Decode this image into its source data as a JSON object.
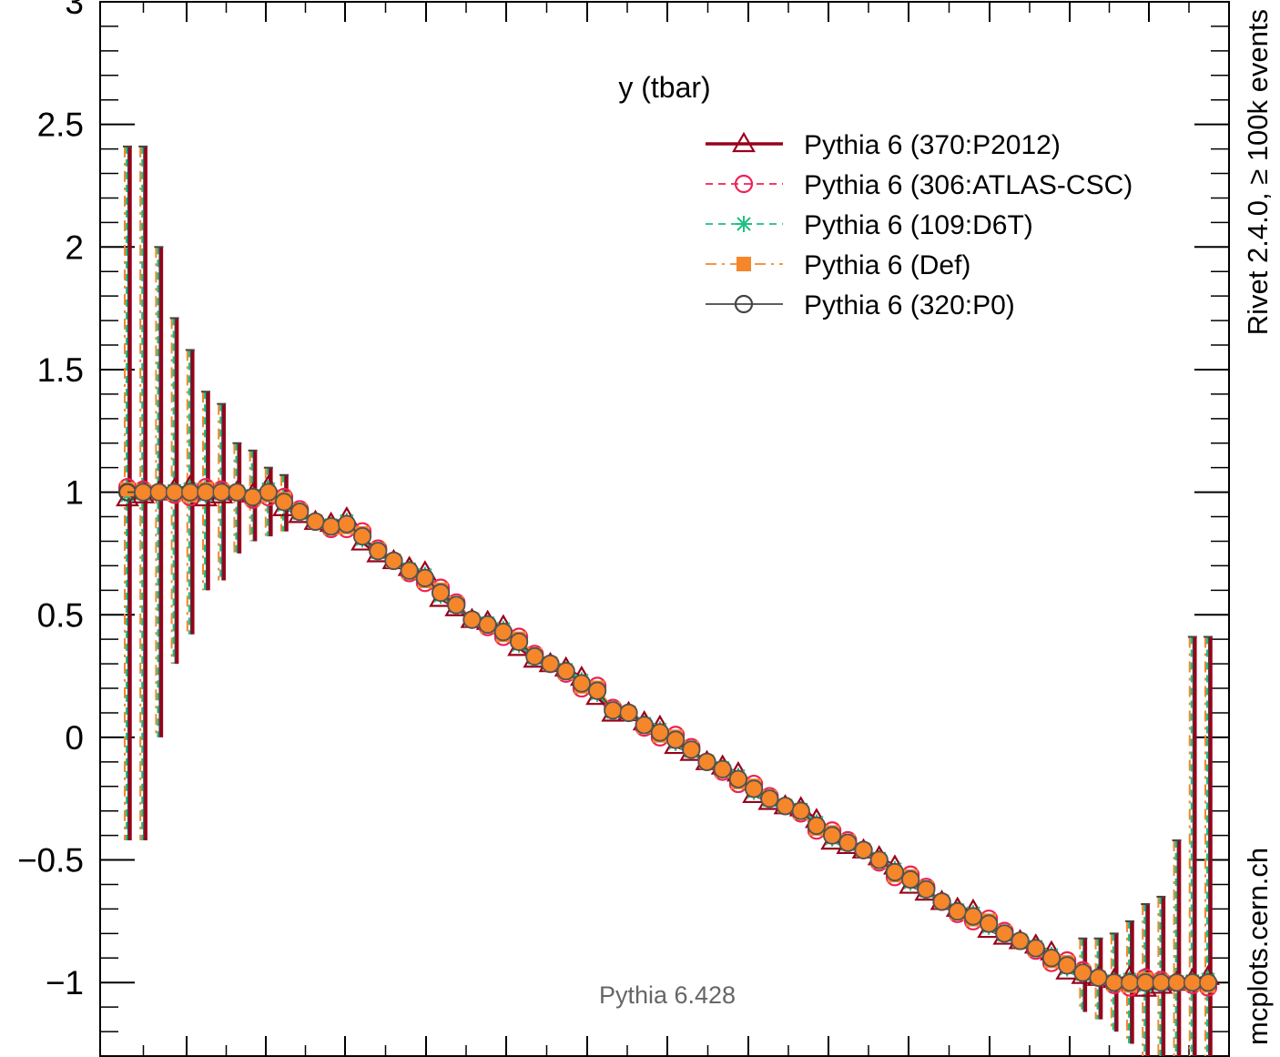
{
  "chart_data": {
    "type": "scatter",
    "title": "",
    "subtitle": "y (tbar)",
    "xlabel": "",
    "ylabel": "",
    "ylim": [
      -1.3,
      3.0
    ],
    "yticks": [
      "−1",
      "−0.5",
      "0",
      "0.5",
      "1",
      "1.5",
      "2",
      "2.5",
      "3"
    ],
    "legend_position": "top-right",
    "side_label_top": "Rivet 2.4.0,  ≥ 100k events",
    "side_label_bottom": "mcplots.cern.ch",
    "generator_label": "Pythia 6.428",
    "series": [
      {
        "name": "Pythia 6 (370:P2012)",
        "color": "#99001a",
        "marker": "triangle-open",
        "line": "solid-thick"
      },
      {
        "name": "Pythia 6 (306:ATLAS-CSC)",
        "color": "#ee2255",
        "marker": "circle-open",
        "line": "dashed"
      },
      {
        "name": "Pythia 6 (109:D6T)",
        "color": "#1fbf80",
        "marker": "asterisk",
        "line": "dashed"
      },
      {
        "name": "Pythia 6 (Def)",
        "color": "#f5862a",
        "marker": "square-filled",
        "line": "dashdot"
      },
      {
        "name": "Pythia 6 (320:P0)",
        "color": "#444444",
        "marker": "circle-open",
        "line": "solid"
      }
    ],
    "x": [
      1,
      2,
      3,
      4,
      5,
      6,
      7,
      8,
      9,
      10,
      11,
      12,
      13,
      14,
      15,
      16,
      17,
      18,
      19,
      20,
      21,
      22,
      23,
      24,
      25,
      26,
      27,
      28,
      29,
      30,
      31,
      32,
      33,
      34,
      35,
      36,
      37,
      38,
      39,
      40,
      41,
      42,
      43,
      44,
      45,
      46,
      47,
      48,
      49,
      50,
      51,
      52,
      53,
      54,
      55,
      56,
      57,
      58,
      59,
      60,
      61,
      62,
      63,
      64,
      65,
      66,
      67,
      68,
      69,
      70
    ],
    "values": [
      1.0,
      1.0,
      1.0,
      1.0,
      1.0,
      1.0,
      1.0,
      1.0,
      0.98,
      1.0,
      0.96,
      0.92,
      0.88,
      0.86,
      0.87,
      0.82,
      0.76,
      0.72,
      0.68,
      0.65,
      0.59,
      0.54,
      0.48,
      0.46,
      0.43,
      0.39,
      0.33,
      0.3,
      0.27,
      0.22,
      0.19,
      0.11,
      0.1,
      0.05,
      0.02,
      -0.01,
      -0.05,
      -0.1,
      -0.13,
      -0.17,
      -0.21,
      -0.25,
      -0.28,
      -0.3,
      -0.36,
      -0.4,
      -0.43,
      -0.46,
      -0.5,
      -0.55,
      -0.58,
      -0.62,
      -0.67,
      -0.71,
      -0.73,
      -0.76,
      -0.8,
      -0.83,
      -0.86,
      -0.9,
      -0.93,
      -0.96,
      -0.98,
      -1.0,
      -1.0,
      -1.0,
      -1.0,
      -1.0,
      -1.0,
      -1.0
    ],
    "error_bars": [
      {
        "x": 1,
        "lo": -0.42,
        "hi": 2.41
      },
      {
        "x": 2,
        "lo": -0.42,
        "hi": 2.41
      },
      {
        "x": 3,
        "lo": 0.0,
        "hi": 2.0
      },
      {
        "x": 4,
        "lo": 0.3,
        "hi": 1.71
      },
      {
        "x": 5,
        "lo": 0.42,
        "hi": 1.58
      },
      {
        "x": 6,
        "lo": 0.6,
        "hi": 1.41
      },
      {
        "x": 7,
        "lo": 0.64,
        "hi": 1.36
      },
      {
        "x": 8,
        "lo": 0.75,
        "hi": 1.2
      },
      {
        "x": 9,
        "lo": 0.8,
        "hi": 1.17
      },
      {
        "x": 10,
        "lo": 0.82,
        "hi": 1.1
      },
      {
        "x": 11,
        "lo": 0.84,
        "hi": 1.07
      },
      {
        "x": 62,
        "lo": -1.12,
        "hi": -0.82
      },
      {
        "x": 63,
        "lo": -1.15,
        "hi": -0.82
      },
      {
        "x": 64,
        "lo": -1.2,
        "hi": -0.8
      },
      {
        "x": 65,
        "lo": -1.25,
        "hi": -0.75
      },
      {
        "x": 66,
        "lo": -1.3,
        "hi": -0.68
      },
      {
        "x": 67,
        "lo": -1.35,
        "hi": -0.65
      },
      {
        "x": 68,
        "lo": -1.4,
        "hi": -0.42
      },
      {
        "x": 69,
        "lo": -1.4,
        "hi": 0.41
      },
      {
        "x": 70,
        "lo": -1.4,
        "hi": 0.41
      }
    ]
  }
}
